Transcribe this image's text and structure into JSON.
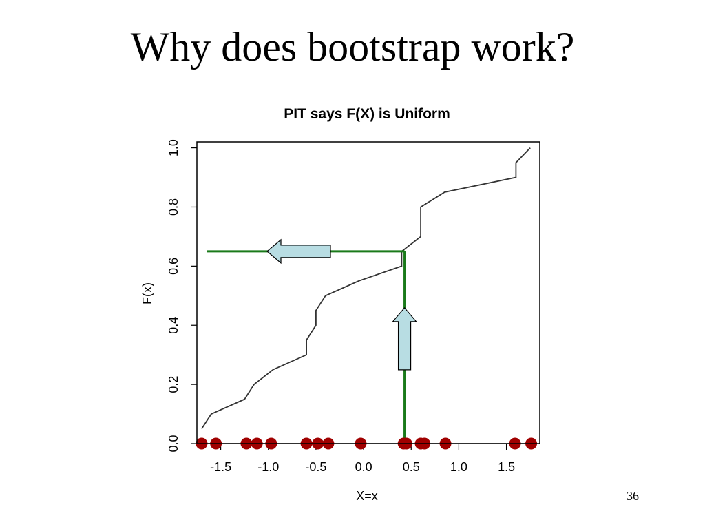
{
  "slide": {
    "title": "Why does bootstrap work?",
    "page_number": "36"
  },
  "chart_data": {
    "type": "line",
    "title": "PIT says F(X) is Uniform",
    "xlabel": "X=x",
    "ylabel": "F(x)",
    "xlim": [
      -1.75,
      1.85
    ],
    "ylim": [
      0,
      1.02
    ],
    "x_ticks": [
      -1.5,
      -1.0,
      -0.5,
      0.0,
      0.5,
      1.0,
      1.5
    ],
    "x_tick_labels": [
      "-1.5",
      "-1.0",
      "-0.5",
      "0.0",
      "0.5",
      "1.0",
      "1.5"
    ],
    "y_ticks": [
      0.0,
      0.2,
      0.4,
      0.6,
      0.8,
      1.0
    ],
    "y_tick_labels": [
      "0.0",
      "0.2",
      "0.4",
      "0.6",
      "0.8",
      "1.0"
    ],
    "grid": false,
    "legend": "none",
    "colors": {
      "curve": "#333333",
      "guide": "#1a7a1a",
      "points": "#a00000",
      "arrow_fill": "#b8dde3"
    },
    "series": [
      {
        "values_x": [
          -1.7,
          -1.6,
          -1.25,
          -1.15,
          -0.95,
          -0.6,
          -0.6,
          -0.5,
          -0.5,
          -0.4,
          -0.05,
          0.4,
          0.4,
          0.6,
          0.6,
          0.85,
          1.6,
          1.6,
          1.75
        ],
        "values_y": [
          0.05,
          0.1,
          0.15,
          0.2,
          0.25,
          0.3,
          0.35,
          0.4,
          0.45,
          0.5,
          0.55,
          0.6,
          0.65,
          0.7,
          0.8,
          0.85,
          0.9,
          0.95,
          1.0
        ]
      }
    ],
    "data_points": [
      {
        "x": -1.7,
        "y": 0
      },
      {
        "x": -1.55,
        "y": 0
      },
      {
        "x": -1.23,
        "y": 0
      },
      {
        "x": -1.12,
        "y": 0
      },
      {
        "x": -0.97,
        "y": 0
      },
      {
        "x": -0.6,
        "y": 0
      },
      {
        "x": -0.48,
        "y": 0
      },
      {
        "x": -0.37,
        "y": 0
      },
      {
        "x": -0.03,
        "y": 0
      },
      {
        "x": 0.42,
        "y": 0
      },
      {
        "x": 0.45,
        "y": 0
      },
      {
        "x": 0.6,
        "y": 0
      },
      {
        "x": 0.64,
        "y": 0
      },
      {
        "x": 0.86,
        "y": 0
      },
      {
        "x": 1.59,
        "y": 0
      },
      {
        "x": 1.76,
        "y": 0
      }
    ],
    "guide": {
      "x": 0.43,
      "y": 0.65
    }
  }
}
